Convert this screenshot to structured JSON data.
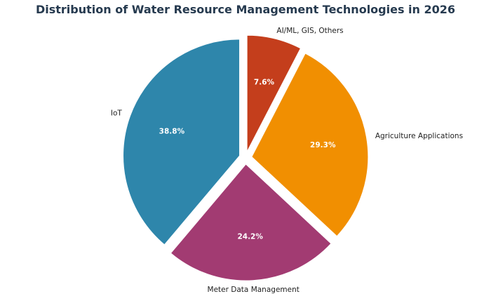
{
  "chart_data": {
    "type": "pie",
    "title": "Distribution of Water Resource Management Technologies in 2026",
    "start_angle_deg": 90,
    "direction": "clockwise",
    "exploded": true,
    "slices": [
      {
        "label": "AI/ML, GIS, Others",
        "value": 7.6,
        "pct_label": "7.6%",
        "color": "#c43e1c"
      },
      {
        "label": "Agriculture Applications",
        "value": 29.3,
        "pct_label": "29.3%",
        "color": "#f18f01"
      },
      {
        "label": "Meter Data Management",
        "value": 24.2,
        "pct_label": "24.2%",
        "color": "#a23b72"
      },
      {
        "label": "IoT",
        "value": 38.8,
        "pct_label": "38.8%",
        "color": "#2e86ab"
      }
    ]
  }
}
